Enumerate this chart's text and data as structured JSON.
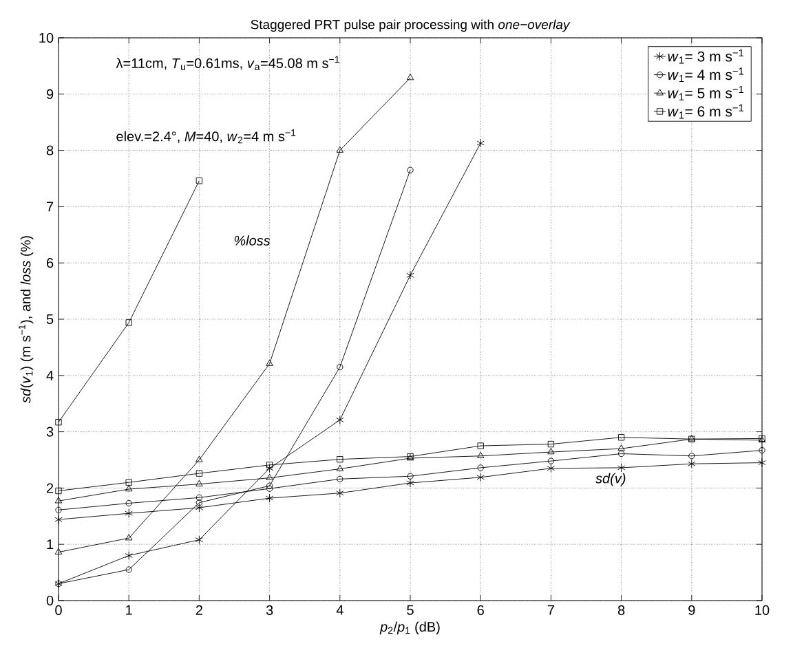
{
  "chart_data": {
    "type": "line",
    "title": "Staggered PRT pulse pair processing with *one−overlay*",
    "xlabel": "*p*$_{2}$/*p*$_{1}$  (dB)",
    "ylabel": "*sd*(*v*$_{1}$)  (m s$^{−1}$),  and  *loss* (%)",
    "x": [
      0,
      1,
      2,
      3,
      4,
      5,
      6,
      7,
      8,
      9,
      10
    ],
    "xlim": [
      0,
      10
    ],
    "xticks": [
      0,
      1,
      2,
      3,
      4,
      5,
      6,
      7,
      8,
      9,
      10
    ],
    "ylim": [
      0,
      10
    ],
    "yticks": [
      0,
      1,
      2,
      3,
      4,
      5,
      6,
      7,
      8,
      9,
      10
    ],
    "grid": true,
    "legend": "top right",
    "line_style": "solid",
    "series": [
      {
        "name": "*w*$_{1}$= 3 m s$^{−1}$",
        "color": "#000000",
        "marker": "cross",
        "values": [
          1.44,
          1.55,
          1.65,
          1.82,
          1.91,
          2.09,
          2.19,
          2.35,
          2.36,
          2.43,
          2.45
        ]
      },
      {
        "name": "*w*$_{1}$= 4 m s$^{−1}$",
        "color": "#000000",
        "marker": "circle",
        "values": [
          1.61,
          1.73,
          1.83,
          1.99,
          2.16,
          2.21,
          2.36,
          2.48,
          2.61,
          2.57,
          2.67
        ]
      },
      {
        "name": "*w*$_{1}$= 5 m s$^{−1}$",
        "color": "#000000",
        "marker": "triangle",
        "values": [
          1.77,
          1.98,
          2.07,
          2.18,
          2.34,
          2.53,
          2.57,
          2.64,
          2.7,
          2.87,
          2.85
        ]
      },
      {
        "name": "*w*$_{1}$= 6 m s$^{−1}$",
        "color": "#000000",
        "marker": "square",
        "values": [
          1.95,
          2.1,
          2.26,
          2.41,
          2.51,
          2.56,
          2.75,
          2.78,
          2.9,
          2.87,
          2.88
        ]
      },
      {
        "color": "#000000",
        "marker": "cross",
        "values": [
          0.3,
          0.8,
          1.08,
          2.35,
          3.21,
          5.78,
          8.13,
          null,
          null,
          null,
          null
        ]
      },
      {
        "color": "#000000",
        "marker": "circle",
        "values": [
          0.3,
          0.55,
          1.74,
          2.04,
          4.15,
          7.65,
          null,
          null,
          null,
          null,
          null
        ]
      },
      {
        "color": "#000000",
        "marker": "triangle",
        "values": [
          0.86,
          1.11,
          2.5,
          4.21,
          8.0,
          9.29,
          null,
          null,
          null,
          null,
          null
        ]
      },
      {
        "color": "#000000",
        "marker": "square",
        "values": [
          3.17,
          4.94,
          7.46,
          null,
          null,
          null,
          null,
          null,
          null,
          null,
          null
        ]
      }
    ],
    "annotations": [
      "λ=11cm, *T*$_{u}$=0.61ms, *v*$_{a}$=45.08 m s$^{−1}$",
      "elev.=2.4°, *M*=40, *w*$_{2}$=4 m s$^{−1}$",
      "%loss",
      "sd(v)"
    ]
  }
}
